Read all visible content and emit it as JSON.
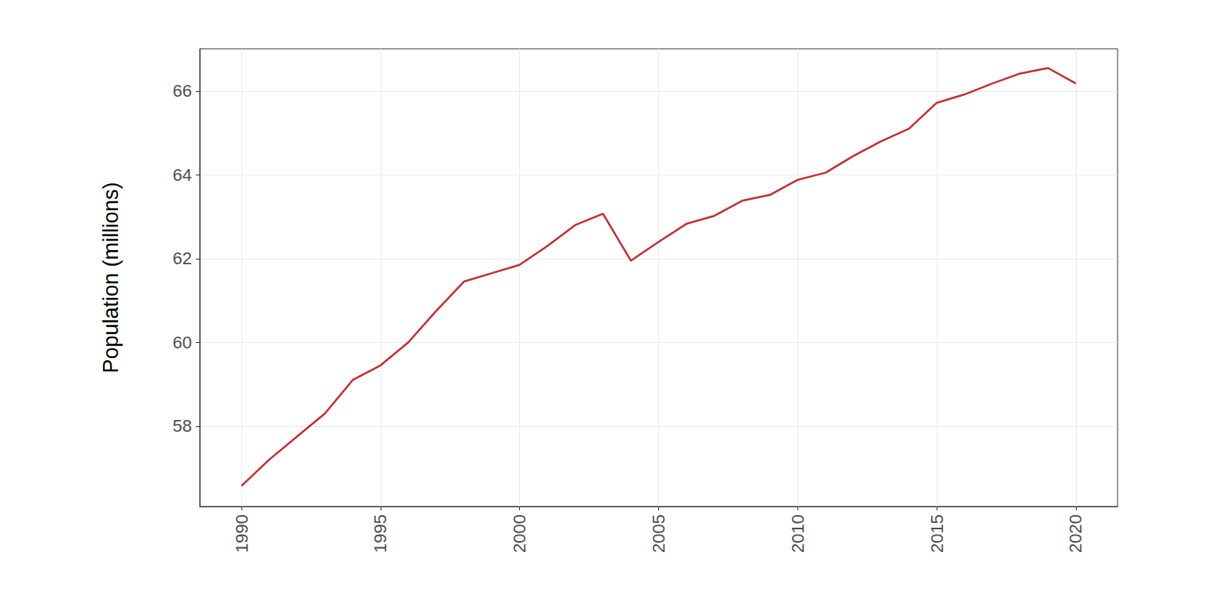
{
  "chart_data": {
    "type": "line",
    "ylabel": "Population (millions)",
    "x": [
      1990,
      1991,
      1992,
      1993,
      1994,
      1995,
      1996,
      1997,
      1998,
      1999,
      2000,
      2001,
      2002,
      2003,
      2004,
      2005,
      2006,
      2007,
      2008,
      2009,
      2010,
      2011,
      2012,
      2013,
      2014,
      2015,
      2016,
      2017,
      2018,
      2019,
      2020
    ],
    "values": [
      56.57,
      57.2,
      57.75,
      58.3,
      59.1,
      59.45,
      60.0,
      60.75,
      61.45,
      61.65,
      61.85,
      62.3,
      62.8,
      63.07,
      61.95,
      62.4,
      62.83,
      63.02,
      63.38,
      63.52,
      63.88,
      64.05,
      64.45,
      64.8,
      65.1,
      65.72,
      65.92,
      66.18,
      66.42,
      66.55,
      66.18
    ],
    "color": "#c62d2f",
    "xlim": [
      1988.5,
      2021.5
    ],
    "ylim": [
      56.08,
      67.01
    ],
    "xticks": [
      1990,
      1995,
      2000,
      2005,
      2010,
      2015,
      2020
    ],
    "yticks": [
      58,
      60,
      62,
      64,
      66
    ],
    "grid": true
  }
}
